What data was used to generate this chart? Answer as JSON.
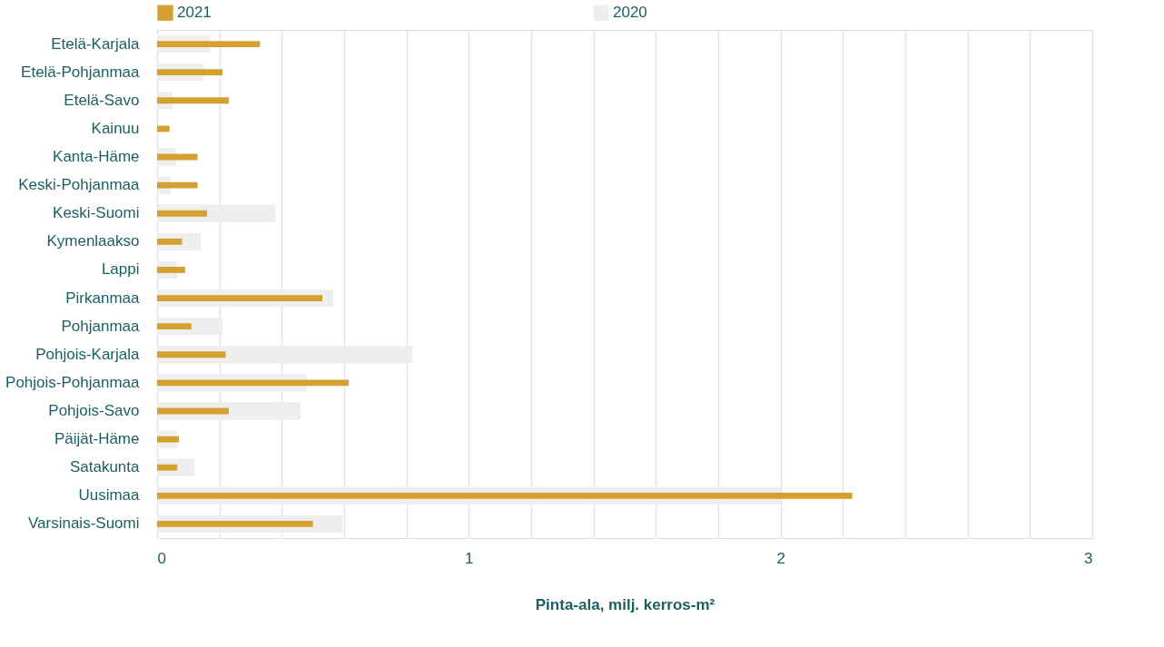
{
  "chart_data": {
    "type": "bar",
    "orientation": "horizontal",
    "xlabel": "Pinta-ala, milj. kerros-m²",
    "categories": [
      "Etelä-Karjala",
      "Etelä-Pohjanmaa",
      "Etelä-Savo",
      "Kainuu",
      "Kanta-Häme",
      "Keski-Pohjanmaa",
      "Keski-Suomi",
      "Kymenlaakso",
      "Lappi",
      "Pirkanmaa",
      "Pohjanmaa",
      "Pohjois-Karjala",
      "Pohjois-Pohjanmaa",
      "Pohjois-Savo",
      "Päijät-Häme",
      "Satakunta",
      "Uusimaa",
      "Varsinais-Suomi"
    ],
    "series": [
      {
        "name": "2020",
        "color": "#eeeeee",
        "values": [
          0.17,
          0.15,
          0.05,
          null,
          0.06,
          0.045,
          0.38,
          0.14,
          0.065,
          0.565,
          0.21,
          0.82,
          0.48,
          0.46,
          0.065,
          0.12,
          2.0,
          0.595
        ]
      },
      {
        "name": "2021",
        "color": "#d4a030",
        "values": [
          0.33,
          0.21,
          0.23,
          0.04,
          0.13,
          0.13,
          0.16,
          0.08,
          0.09,
          0.53,
          0.11,
          0.22,
          0.615,
          0.23,
          0.07,
          0.065,
          2.23,
          0.5
        ]
      }
    ],
    "xlim": [
      0,
      3
    ],
    "xticks": [
      0,
      {
        "value": 0.2,
        "label": null
      },
      {
        "value": 0.4,
        "label": null
      },
      {
        "value": 0.6,
        "label": null
      },
      {
        "value": 0.8,
        "label": null
      },
      1,
      {
        "value": 1.2,
        "label": null
      },
      {
        "value": 1.4,
        "label": null
      },
      {
        "value": 1.6,
        "label": null
      },
      {
        "value": 1.8,
        "label": null
      },
      2,
      {
        "value": 2.2,
        "label": null
      },
      {
        "value": 2.4,
        "label": null
      },
      {
        "value": 2.6,
        "label": null
      },
      {
        "value": 2.8,
        "label": null
      },
      3
    ],
    "grid": "x",
    "legend": "top"
  }
}
